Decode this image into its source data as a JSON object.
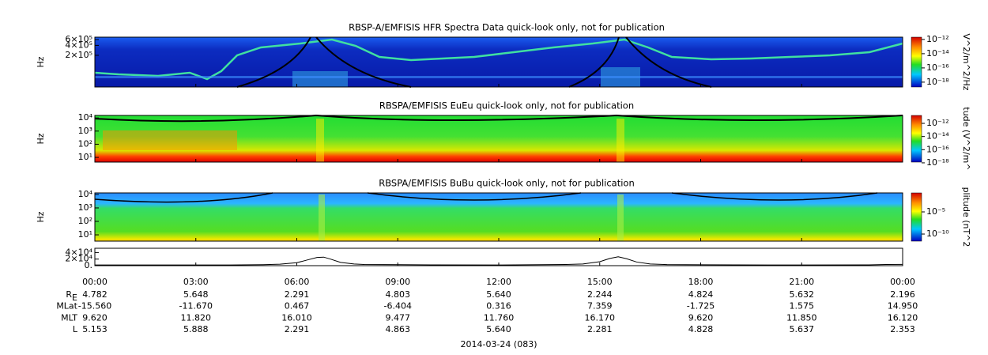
{
  "chart_data": [
    {
      "type": "spectrogram",
      "title": "RBSP-A/EMFISIS  HFR Spectra Data quick-look only, not for publication",
      "ylabel": "Hz",
      "log_scale": true,
      "ylim": [
        22000,
        710000
      ],
      "yticks": [
        {
          "value": 600000,
          "label": "6×10⁵"
        },
        {
          "value": 400000,
          "label": "4×10⁵"
        },
        {
          "value": 200000,
          "label": "2×10⁵"
        }
      ],
      "colorbar": {
        "title": "V^2/m^2/Hz",
        "lim": [
          2.1e-19,
          2.1e-12
        ],
        "ticks": [
          {
            "value": 1e-12,
            "label": "10⁻¹²"
          },
          {
            "value": 1e-14,
            "label": "10⁻¹⁴"
          },
          {
            "value": 1e-16,
            "label": "10⁻¹⁶"
          },
          {
            "value": 1e-18,
            "label": "10⁻¹⁸"
          }
        ]
      }
    },
    {
      "type": "spectrogram",
      "title": "RBSPA/EMFISIS  EuEu quick-look only, not for publication",
      "ylabel": "Hz",
      "log_scale": true,
      "ylim": [
        4.4,
        15500
      ],
      "yticks": [
        {
          "value": 10000,
          "label": "10⁴"
        },
        {
          "value": 1000,
          "label": "10³"
        },
        {
          "value": 100,
          "label": "10²"
        },
        {
          "value": 10,
          "label": "10¹"
        }
      ],
      "colorbar": {
        "title": "tude (V^2/m^",
        "lim": [
          1.3e-18,
          1.6e-11
        ],
        "ticks": [
          {
            "value": 1e-12,
            "label": "10⁻¹²"
          },
          {
            "value": 1e-14,
            "label": "10⁻¹⁴"
          },
          {
            "value": 1e-16,
            "label": "10⁻¹⁶"
          },
          {
            "value": 1e-18,
            "label": "10⁻¹⁸"
          }
        ]
      }
    },
    {
      "type": "spectrogram",
      "title": "RBSPA/EMFISIS  BuBu quick-look only, not for publication",
      "ylabel": "Hz",
      "log_scale": true,
      "ylim": [
        3.4,
        13000
      ],
      "yticks": [
        {
          "value": 10000,
          "label": "10⁴"
        },
        {
          "value": 1000,
          "label": "10³"
        },
        {
          "value": 100,
          "label": "10²"
        },
        {
          "value": 10,
          "label": "10¹"
        }
      ],
      "colorbar": {
        "title": "plitude (nT^2",
        "lim": [
          2.5e-12,
          0.19
        ],
        "ticks": [
          {
            "value": 1e-05,
            "label": "10⁻⁵"
          },
          {
            "value": 1e-10,
            "label": "10⁻¹⁰"
          }
        ]
      }
    },
    {
      "type": "line",
      "ylim": [
        0,
        53000
      ],
      "yticks": [
        {
          "value": 40000,
          "label": "4×10⁴"
        },
        {
          "value": 20000,
          "label": "2×10⁴"
        },
        {
          "value": 0,
          "label": "0."
        }
      ],
      "x": [
        0,
        2,
        4,
        5,
        5.5,
        6,
        6.3,
        6.6,
        6.8,
        7,
        7.3,
        7.7,
        8,
        10,
        12,
        14,
        14.5,
        15,
        15.3,
        15.55,
        15.8,
        16.1,
        16.5,
        17,
        20,
        23,
        23.5,
        24
      ],
      "series": [
        {
          "color": "#000000",
          "values": [
            2000,
            2000,
            2200,
            3000,
            4500,
            9000,
            17000,
            25000,
            26000,
            20000,
            10000,
            5000,
            3500,
            2500,
            2000,
            3500,
            5000,
            12000,
            22000,
            27000,
            21000,
            11000,
            5000,
            3200,
            2000,
            2500,
            3500,
            4000
          ]
        }
      ]
    }
  ],
  "time_axis": {
    "xlim": [
      0,
      24
    ],
    "xticks": [
      {
        "value": 0,
        "label": "00:00"
      },
      {
        "value": 3,
        "label": "03:00"
      },
      {
        "value": 6,
        "label": "06:00"
      },
      {
        "value": 9,
        "label": "09:00"
      },
      {
        "value": 12,
        "label": "12:00"
      },
      {
        "value": 15,
        "label": "15:00"
      },
      {
        "value": 18,
        "label": "18:00"
      },
      {
        "value": 21,
        "label": "21:00"
      },
      {
        "value": 24,
        "label": "00:00"
      }
    ]
  },
  "ephemeris": {
    "rows": [
      {
        "label": "R",
        "sub": "E",
        "values": [
          "4.782",
          "5.648",
          "2.291",
          "4.803",
          "5.640",
          "2.244",
          "4.824",
          "5.632",
          "2.196"
        ]
      },
      {
        "label": "MLat",
        "values": [
          "-15.560",
          "-11.670",
          "0.467",
          "-6.404",
          "0.316",
          "7.359",
          "-1.725",
          "1.575",
          "14.950"
        ]
      },
      {
        "label": "MLT",
        "values": [
          "9.620",
          "11.820",
          "16.010",
          "9.477",
          "11.760",
          "16.170",
          "9.620",
          "11.850",
          "16.120"
        ]
      },
      {
        "label": "L",
        "values": [
          "5.153",
          "5.888",
          "2.291",
          "4.863",
          "5.640",
          "2.281",
          "4.828",
          "5.637",
          "2.353"
        ]
      }
    ]
  },
  "date_label": "2014-03-24 (083)"
}
